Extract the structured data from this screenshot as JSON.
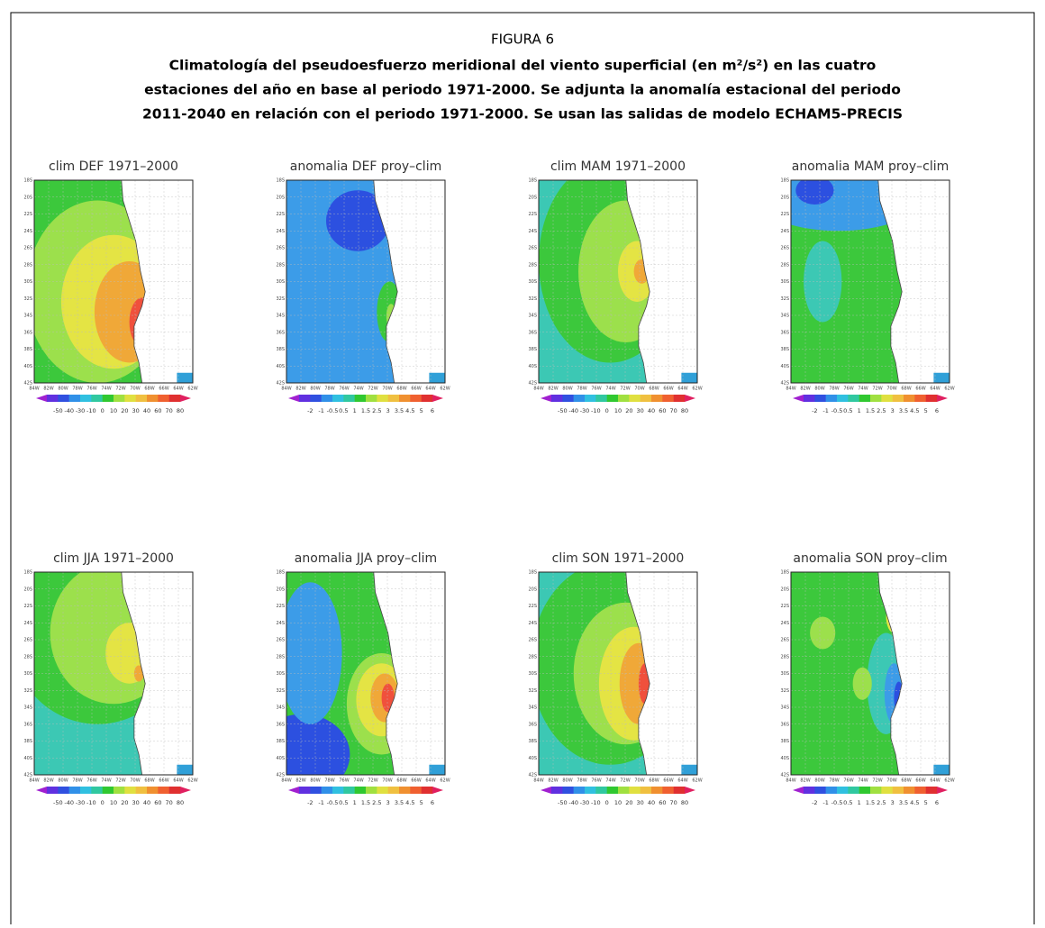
{
  "figure": {
    "label": "FIGURA 6",
    "title_lines": [
      "Climatología del pseudoesfuerzo meridional del viento superficial (en m²/s²) en las cuatro",
      "estaciones del año en base al periodo 1971-2000. Se adjunta la anomalía estacional del periodo",
      "2011-2040 en relación con el periodo 1971-2000. Se usan las salidas de modelo ECHAM5-PRECIS"
    ],
    "lat_labels": [
      "18S",
      "20S",
      "22S",
      "24S",
      "26S",
      "28S",
      "30S",
      "32S",
      "34S",
      "36S",
      "38S",
      "40S",
      "42S"
    ],
    "lon_labels": [
      "84W",
      "82W",
      "80W",
      "78W",
      "76W",
      "74W",
      "72W",
      "70W",
      "68W",
      "66W",
      "64W",
      "62W"
    ],
    "panels": [
      {
        "title": "clim DEF 1971–2000",
        "colorbar_labels": [
          "-50",
          "-40",
          "-30",
          "-10",
          "0",
          "10",
          "20",
          "30",
          "40",
          "60",
          "70",
          "80"
        ]
      },
      {
        "title": "anomalia DEF proy–clim",
        "colorbar_labels": [
          "-2",
          "-1",
          "-0.5",
          "0.5",
          "1",
          "1.5",
          "2.5",
          "3",
          "3.5",
          "4.5",
          "5",
          "6"
        ]
      },
      {
        "title": "clim MAM 1971–2000",
        "colorbar_labels": [
          "-50",
          "-40",
          "-30",
          "-10",
          "0",
          "10",
          "20",
          "30",
          "40",
          "60",
          "70",
          "80"
        ]
      },
      {
        "title": "anomalia MAM proy–clim",
        "colorbar_labels": [
          "-2",
          "-1",
          "-0.5",
          "0.5",
          "1",
          "1.5",
          "2.5",
          "3",
          "3.5",
          "4.5",
          "5",
          "6"
        ]
      },
      {
        "title": "clim JJA 1971–2000",
        "colorbar_labels": [
          "-50",
          "-40",
          "-30",
          "-10",
          "0",
          "10",
          "20",
          "30",
          "40",
          "60",
          "70",
          "80"
        ]
      },
      {
        "title": "anomalia JJA proy–clim",
        "colorbar_labels": [
          "-2",
          "-1",
          "-0.5",
          "0.5",
          "1",
          "1.5",
          "2.5",
          "3",
          "3.5",
          "4.5",
          "5",
          "6"
        ]
      },
      {
        "title": "clim SON 1971–2000",
        "colorbar_labels": [
          "-50",
          "-40",
          "-30",
          "-10",
          "0",
          "10",
          "20",
          "30",
          "40",
          "60",
          "70",
          "80"
        ]
      },
      {
        "title": "anomalia SON proy–clim",
        "colorbar_labels": [
          "-2",
          "-1",
          "-0.5",
          "0.5",
          "1",
          "1.5",
          "2.5",
          "3",
          "3.5",
          "4.5",
          "5",
          "6"
        ]
      }
    ]
  }
}
